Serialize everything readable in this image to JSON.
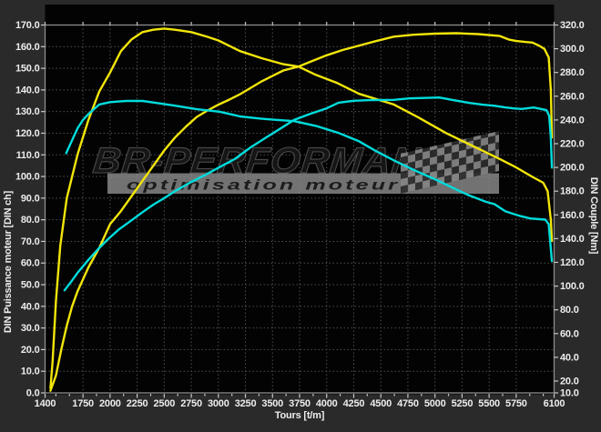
{
  "chart_data": {
    "type": "line",
    "xlabel": "Tours [t/m]",
    "ylabel_left": "DIN Puissance moteur [DIN ch]",
    "ylabel_right": "DIN Couple [Nm]",
    "x_range": [
      1400,
      6100
    ],
    "y_left_range": [
      0,
      170
    ],
    "y_right_range": [
      10,
      320
    ],
    "x_major_ticks": [
      1400,
      1750,
      2000,
      2250,
      2500,
      2750,
      3000,
      3250,
      3500,
      3750,
      4000,
      4250,
      4500,
      4750,
      5000,
      5250,
      5500,
      5750,
      6100
    ],
    "x_minor_ticks": [
      1500,
      1625,
      1875,
      2125,
      2375,
      2625,
      2875,
      3125,
      3375,
      3625,
      3875,
      4125,
      4375,
      4625,
      4875,
      5125,
      5375,
      5625,
      5875,
      6000
    ],
    "y_left_ticks": [
      0,
      10,
      20,
      30,
      40,
      50,
      60,
      70,
      80,
      90,
      100,
      110,
      120,
      130,
      140,
      150,
      160,
      170
    ],
    "y_right_ticks": [
      10,
      20,
      40,
      60,
      80,
      100,
      120,
      140,
      160,
      180,
      200,
      220,
      240,
      260,
      280,
      300,
      320
    ],
    "grid": "dotted",
    "legend_position": "none",
    "colors": {
      "tuned": "#f2e50a",
      "original": "#00dcdc",
      "grid": "#4f4f4f",
      "plot_bg": "#030303",
      "frame": "#8c8c8c",
      "outer_bg": "#2a2a2a"
    },
    "series": [
      {
        "name": "tuned-power",
        "axis": "left",
        "unit": "DIN ch",
        "color": "#f2e50a",
        "peak": 166.2,
        "points": [
          [
            1450,
            1
          ],
          [
            1500,
            8
          ],
          [
            1550,
            20
          ],
          [
            1600,
            31
          ],
          [
            1650,
            40
          ],
          [
            1700,
            47
          ],
          [
            1800,
            58
          ],
          [
            1900,
            67
          ],
          [
            2000,
            78
          ],
          [
            2100,
            84
          ],
          [
            2200,
            91
          ],
          [
            2300,
            98
          ],
          [
            2400,
            105
          ],
          [
            2500,
            112
          ],
          [
            2600,
            118
          ],
          [
            2700,
            123
          ],
          [
            2800,
            127.5
          ],
          [
            2900,
            130.5
          ],
          [
            3000,
            133.2
          ],
          [
            3100,
            135.5
          ],
          [
            3200,
            138
          ],
          [
            3300,
            141
          ],
          [
            3400,
            144
          ],
          [
            3500,
            146.5
          ],
          [
            3600,
            149
          ],
          [
            3740,
            150.8
          ],
          [
            3850,
            153
          ],
          [
            4000,
            156
          ],
          [
            4150,
            158.5
          ],
          [
            4300,
            160.5
          ],
          [
            4450,
            162.5
          ],
          [
            4620,
            164.6
          ],
          [
            4800,
            165.5
          ],
          [
            5000,
            166
          ],
          [
            5200,
            166.2
          ],
          [
            5400,
            165.8
          ],
          [
            5600,
            164.9
          ],
          [
            5680,
            163.3
          ],
          [
            5750,
            162.6
          ],
          [
            5850,
            162.1
          ],
          [
            5900,
            161.9
          ],
          [
            5960,
            160.5
          ],
          [
            6010,
            159
          ],
          [
            6050,
            155
          ],
          [
            6070,
            140
          ],
          [
            6080,
            118
          ]
        ]
      },
      {
        "name": "tuned-torque",
        "axis": "right",
        "unit": "Nm",
        "color": "#f2e50a",
        "peak": 317,
        "points": [
          [
            1450,
            14
          ],
          [
            1470,
            37
          ],
          [
            1500,
            87
          ],
          [
            1540,
            134
          ],
          [
            1600,
            174
          ],
          [
            1700,
            211
          ],
          [
            1800,
            240
          ],
          [
            1900,
            264
          ],
          [
            2000,
            280
          ],
          [
            2100,
            298
          ],
          [
            2200,
            308
          ],
          [
            2300,
            314
          ],
          [
            2400,
            316
          ],
          [
            2500,
            317
          ],
          [
            2600,
            316
          ],
          [
            2750,
            314
          ],
          [
            2900,
            310
          ],
          [
            3000,
            307
          ],
          [
            3200,
            298
          ],
          [
            3400,
            292
          ],
          [
            3600,
            287
          ],
          [
            3740,
            285
          ],
          [
            3900,
            278
          ],
          [
            4100,
            271
          ],
          [
            4300,
            262
          ],
          [
            4620,
            253
          ],
          [
            4850,
            242
          ],
          [
            5100,
            229
          ],
          [
            5350,
            218
          ],
          [
            5600,
            207
          ],
          [
            5750,
            200
          ],
          [
            5900,
            192
          ],
          [
            6000,
            187
          ],
          [
            6040,
            180
          ],
          [
            6070,
            156
          ],
          [
            6080,
            138
          ]
        ]
      },
      {
        "name": "original-power",
        "axis": "left",
        "unit": "DIN ch",
        "color": "#00dcdc",
        "peak": 136.5,
        "points": [
          [
            1580,
            47.4
          ],
          [
            1650,
            52
          ],
          [
            1700,
            55.5
          ],
          [
            1800,
            61.5
          ],
          [
            1900,
            67
          ],
          [
            1980,
            71
          ],
          [
            2080,
            75.5
          ],
          [
            2170,
            78.7
          ],
          [
            2300,
            83.5
          ],
          [
            2400,
            87
          ],
          [
            2500,
            90
          ],
          [
            2600,
            93.2
          ],
          [
            2750,
            97.5
          ],
          [
            2890,
            101
          ],
          [
            3010,
            104.3
          ],
          [
            3150,
            108
          ],
          [
            3300,
            113.5
          ],
          [
            3450,
            118.3
          ],
          [
            3600,
            123
          ],
          [
            3700,
            126.2
          ],
          [
            3850,
            129
          ],
          [
            4000,
            131.5
          ],
          [
            4110,
            134.1
          ],
          [
            4250,
            135
          ],
          [
            4400,
            135.3
          ],
          [
            4620,
            135.4
          ],
          [
            4760,
            136.1
          ],
          [
            4900,
            136.3
          ],
          [
            5040,
            136.5
          ],
          [
            5180,
            135.2
          ],
          [
            5320,
            134
          ],
          [
            5440,
            133.2
          ],
          [
            5550,
            132.7
          ],
          [
            5640,
            132
          ],
          [
            5720,
            131.5
          ],
          [
            5800,
            131.2
          ],
          [
            5910,
            131.9
          ],
          [
            5970,
            131.3
          ],
          [
            6030,
            130.6
          ],
          [
            6055,
            128
          ],
          [
            6070,
            118
          ],
          [
            6080,
            104.1
          ]
        ]
      },
      {
        "name": "original-torque",
        "axis": "right",
        "unit": "Nm",
        "color": "#00dcdc",
        "peak": 256,
        "points": [
          [
            1595,
            212
          ],
          [
            1650,
            223
          ],
          [
            1700,
            233
          ],
          [
            1750,
            240
          ],
          [
            1800,
            245
          ],
          [
            1900,
            253
          ],
          [
            2000,
            255
          ],
          [
            2150,
            256
          ],
          [
            2300,
            256
          ],
          [
            2450,
            254
          ],
          [
            2600,
            252
          ],
          [
            2800,
            249
          ],
          [
            3010,
            247
          ],
          [
            3200,
            243
          ],
          [
            3400,
            241
          ],
          [
            3550,
            240
          ],
          [
            3700,
            239
          ],
          [
            3900,
            235
          ],
          [
            4110,
            229
          ],
          [
            4300,
            222
          ],
          [
            4450,
            214
          ],
          [
            4620,
            206
          ],
          [
            4800,
            198
          ],
          [
            5000,
            190
          ],
          [
            5160,
            183
          ],
          [
            5300,
            177
          ],
          [
            5470,
            171
          ],
          [
            5550,
            169
          ],
          [
            5650,
            163
          ],
          [
            5790,
            159
          ],
          [
            5880,
            157
          ],
          [
            6020,
            156
          ],
          [
            6050,
            152
          ],
          [
            6080,
            121
          ]
        ]
      }
    ]
  },
  "watermark": {
    "brand": "BR-PERFORMANCE",
    "tagline": "optimisation moteur"
  }
}
